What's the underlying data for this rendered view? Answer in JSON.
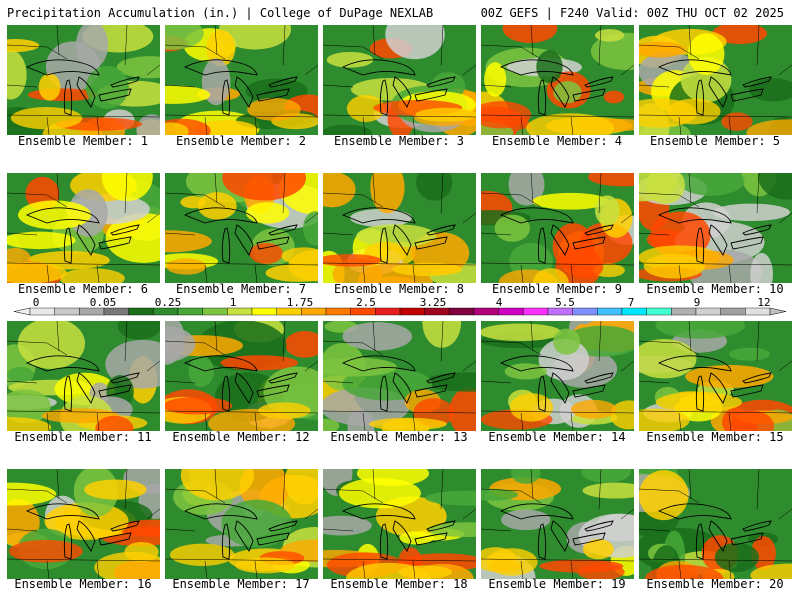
{
  "header": {
    "title": "Precipitation Accumulation (in.) | College of DuPage NEXLAB",
    "run_info": "00Z GEFS | F240 Valid: 00Z THU OCT 02 2025"
  },
  "panels": [
    {
      "label": "Ensemble Member: 1"
    },
    {
      "label": "Ensemble Member: 2"
    },
    {
      "label": "Ensemble Member: 3"
    },
    {
      "label": "Ensemble Member: 4"
    },
    {
      "label": "Ensemble Member: 5"
    },
    {
      "label": "Ensemble Member: 6"
    },
    {
      "label": "Ensemble Member: 7"
    },
    {
      "label": "Ensemble Member: 8"
    },
    {
      "label": "Ensemble Member: 9"
    },
    {
      "label": "Ensemble Member: 10"
    },
    {
      "label": "Ensemble Member: 11"
    },
    {
      "label": "Ensemble Member: 12"
    },
    {
      "label": "Ensemble Member: 13"
    },
    {
      "label": "Ensemble Member: 14"
    },
    {
      "label": "Ensemble Member: 15"
    },
    {
      "label": "Ensemble Member: 16"
    },
    {
      "label": "Ensemble Member: 17"
    },
    {
      "label": "Ensemble Member: 18"
    },
    {
      "label": "Ensemble Member: 19"
    },
    {
      "label": "Ensemble Member: 20"
    }
  ],
  "colorbar": {
    "labels": [
      "0",
      "0.05",
      "0.25",
      "1",
      "1.75",
      "2.5",
      "3.25",
      "4",
      "5.5",
      "7",
      "9",
      "12"
    ],
    "colors": [
      "#e8e8e8",
      "#c8c8c8",
      "#a8a8a8",
      "#787878",
      "#1a6e1a",
      "#2e8b2e",
      "#48a838",
      "#7cc440",
      "#c8e040",
      "#ffff00",
      "#ffd000",
      "#ffa800",
      "#ff7800",
      "#ff4800",
      "#e81e1e",
      "#c00000",
      "#a00020",
      "#800040",
      "#b0007a",
      "#d000c0",
      "#ff30ff",
      "#c070ff",
      "#8090ff",
      "#40c0ff",
      "#00e8ff",
      "#40ffd0",
      "#b0b0b0",
      "#d0d0d0",
      "#a0a0a0",
      "#e0e0e0"
    ]
  }
}
